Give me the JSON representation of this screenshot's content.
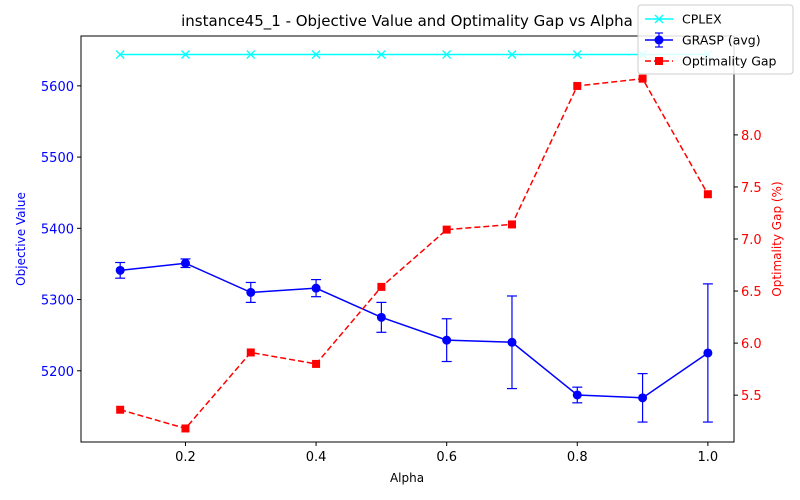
{
  "chart_data": {
    "type": "line",
    "title": "instance45_1 - Objective Value and Optimality Gap vs Alpha",
    "xlabel": "Alpha",
    "ylabel_left": "Objective Value",
    "ylabel_right": "Optimality Gap (%)",
    "xlim": [
      0.04,
      1.04
    ],
    "ylim_left": [
      5100,
      5670
    ],
    "ylim_right": [
      5.05,
      8.95
    ],
    "x_ticks": [
      0.2,
      0.4,
      0.6,
      0.8,
      1.0
    ],
    "x_tick_labels": [
      "0.2",
      "0.4",
      "0.6",
      "0.8",
      "1.0"
    ],
    "left_ticks": [
      5200,
      5300,
      5400,
      5500,
      5600
    ],
    "left_tick_labels": [
      "5200",
      "5300",
      "5400",
      "5500",
      "5600"
    ],
    "right_ticks": [
      5.5,
      6.0,
      6.5,
      7.0,
      7.5,
      8.0
    ],
    "right_tick_labels": [
      "5.5",
      "6.0",
      "6.5",
      "7.0",
      "7.5",
      "8.0"
    ],
    "grid": false,
    "legend_position": "top-right",
    "colors": {
      "left_axis": "#0000ff",
      "right_axis": "#ff0000"
    },
    "series": [
      {
        "name": "CPLEX",
        "axis": "left",
        "color": "#00ffff",
        "marker": "x",
        "line": "solid",
        "x": [
          0.1,
          0.2,
          0.3,
          0.4,
          0.5,
          0.6,
          0.7,
          0.8,
          0.9,
          1.0
        ],
        "y": [
          5644,
          5644,
          5644,
          5644,
          5644,
          5644,
          5644,
          5644,
          5644,
          5644
        ]
      },
      {
        "name": "GRASP (avg)",
        "axis": "left",
        "color": "#0000ff",
        "marker": "o",
        "line": "solid",
        "x": [
          0.1,
          0.2,
          0.3,
          0.4,
          0.5,
          0.6,
          0.7,
          0.8,
          0.9,
          1.0
        ],
        "y": [
          5341,
          5351,
          5310,
          5316,
          5275,
          5243,
          5240,
          5166,
          5162,
          5225
        ],
        "err": [
          11,
          6,
          14,
          12,
          21,
          30,
          65,
          11,
          34,
          97
        ]
      },
      {
        "name": "Optimality Gap",
        "axis": "right",
        "color": "#ff0000",
        "marker": "s",
        "line": "dashed",
        "x": [
          0.1,
          0.2,
          0.3,
          0.4,
          0.5,
          0.6,
          0.7,
          0.8,
          0.9,
          1.0
        ],
        "y": [
          5.36,
          5.18,
          5.91,
          5.8,
          6.54,
          7.09,
          7.14,
          8.47,
          8.54,
          7.43
        ]
      }
    ]
  }
}
